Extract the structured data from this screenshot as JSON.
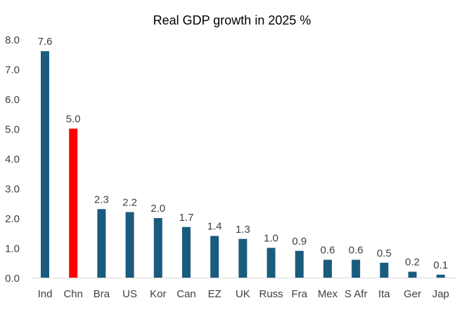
{
  "chart_data": {
    "type": "bar",
    "title": "Real GDP growth in 2025 %",
    "xlabel": "",
    "ylabel": "",
    "categories": [
      "Ind",
      "Chn",
      "Bra",
      "US",
      "Kor",
      "Can",
      "EZ",
      "UK",
      "Russ",
      "Fra",
      "Mex",
      "S Afr",
      "Ita",
      "Ger",
      "Jap"
    ],
    "values": [
      7.6,
      5.0,
      2.3,
      2.2,
      2.0,
      1.7,
      1.4,
      1.3,
      1.0,
      0.9,
      0.6,
      0.6,
      0.5,
      0.2,
      0.1
    ],
    "value_labels": [
      "7.6",
      "5.0",
      "2.3",
      "2.2",
      "2.0",
      "1.7",
      "1.4",
      "1.3",
      "1.0",
      "0.9",
      "0.6",
      "0.6",
      "0.5",
      "0.2",
      "0.1"
    ],
    "highlight_index": 1,
    "ylim": [
      0,
      8
    ],
    "yticks": [
      "0.0",
      "1.0",
      "2.0",
      "3.0",
      "4.0",
      "5.0",
      "6.0",
      "7.0",
      "8.0"
    ],
    "grid": false,
    "legend": "none",
    "colors": {
      "bar": "#1a5c7e",
      "highlight": "#ff0000",
      "axis": "#d9d9d9",
      "text": "#404040",
      "title": "#000000"
    }
  }
}
